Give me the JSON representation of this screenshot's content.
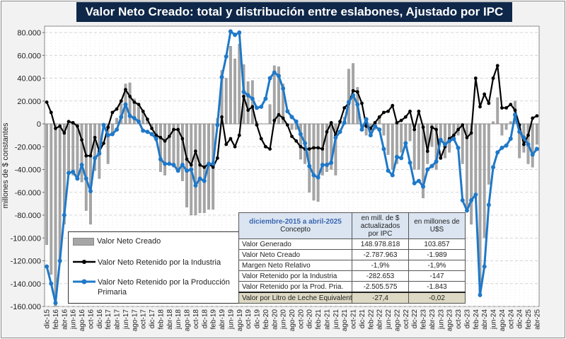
{
  "title": "Valor Neto Creado: total y distribución  entre eslabones, Ajustado  por IPC",
  "colors": {
    "title_bg": "#0f2748",
    "bars": "#a6a6a6",
    "industria": "#000000",
    "produccion": "#1f78c8"
  },
  "chart_data": {
    "type": "bar+line",
    "title": "Valor Neto Creado: total y distribución  entre eslabones, Ajustado  por IPC",
    "ylabel": "millones de $ constantes",
    "ylim": [
      -160000,
      80000
    ],
    "y_ticks": [
      "80.000",
      "60.000",
      "40.000",
      "20.000",
      "0",
      "-20.000",
      "-40.000",
      "-60.000",
      "-80.000",
      "-100.000",
      "-120.000",
      "-140.000",
      "-160.000"
    ],
    "y_tick_values": [
      80000,
      60000,
      40000,
      20000,
      0,
      -20000,
      -40000,
      -60000,
      -80000,
      -100000,
      -120000,
      -140000,
      -160000
    ],
    "grid": true,
    "x_start": "dic-15",
    "x_end": "abr-25",
    "x_tick_labels": [
      "dic-15",
      "feb-16",
      "abr-16",
      "jun-16",
      "ago-16",
      "oct-16",
      "dic-16",
      "feb-17",
      "abr-17",
      "jun-17",
      "ago-17",
      "oct-17",
      "dic-17",
      "feb-18",
      "abr-18",
      "jun-18",
      "ago-18",
      "oct-18",
      "dic-18",
      "feb-19",
      "abr-19",
      "jun-19",
      "ago-19",
      "oct-19",
      "dic-19",
      "feb-20",
      "abr-20",
      "jun-20",
      "ago-20",
      "oct-20",
      "dic-20",
      "feb-21",
      "abr-21",
      "jun-21",
      "ago-21",
      "oct-21",
      "dic-21",
      "feb-22",
      "abr-22",
      "jun-22",
      "ago-22",
      "oct-22",
      "dic-22",
      "feb-23",
      "abr-23",
      "jun-23",
      "ago-23",
      "oct-23",
      "dic-23",
      "feb-24",
      "abr-24",
      "jun-24",
      "ago-24",
      "oct-24",
      "dic-24",
      "feb-25",
      "abr-25"
    ],
    "legend_position": "bottom-left",
    "series": [
      {
        "name": "Valor Neto Creado",
        "type": "bar",
        "values": [
          -106000,
          -132000,
          -160000,
          -122000,
          -88000,
          -42000,
          -45000,
          -48000,
          -51000,
          -76000,
          -88000,
          -41000,
          -48000,
          -2000,
          -35000,
          -10000,
          5000,
          18000,
          35000,
          36000,
          22000,
          15000,
          10000,
          5000,
          -3000,
          -15000,
          -42000,
          -45000,
          -35000,
          -38000,
          -42000,
          -50000,
          -73000,
          -80000,
          -80000,
          -78000,
          -78000,
          -75000,
          -75000,
          5000,
          47000,
          40000,
          68000,
          57000,
          70000,
          52000,
          37000,
          38000,
          2000,
          0,
          0,
          17000,
          51000,
          50000,
          35000,
          0,
          -5000,
          -5000,
          -31000,
          -35000,
          -60000,
          -67000,
          -68000,
          -45000,
          -42000,
          -40000,
          -45000,
          2000,
          6000,
          48000,
          53000,
          32000,
          -5000,
          -10000,
          -8000,
          -5000,
          5000,
          -10000,
          -27000,
          -40000,
          -35000,
          -25000,
          -20000,
          -15000,
          -40000,
          -40000,
          -65000,
          -35000,
          -20000,
          -40000,
          -15000,
          -30000,
          -25000,
          -15000,
          -10000,
          -35000,
          -76000,
          -88000,
          -60000,
          -150000,
          -100000,
          -53000,
          2000,
          23000,
          -10000,
          -5000,
          2000,
          20000,
          -30000,
          -25000,
          -35000,
          -38000,
          -18000
        ]
      },
      {
        "name": "Valor Neto Retenido por la Industria",
        "type": "line",
        "values": [
          19000,
          10000,
          -4000,
          -2000,
          -8000,
          2000,
          1000,
          -2000,
          -14000,
          -28000,
          -28000,
          -12000,
          -24000,
          -17000,
          -3000,
          10000,
          13000,
          20000,
          30000,
          24000,
          19000,
          17000,
          11000,
          4000,
          -4000,
          -10000,
          -12000,
          -15000,
          -11000,
          -5000,
          -5000,
          -13000,
          -31000,
          -36000,
          -24000,
          -36000,
          -38000,
          -35000,
          -38000,
          -30000,
          6000,
          -18000,
          -13000,
          -20000,
          -10000,
          24000,
          12000,
          15000,
          -1000,
          -13000,
          -20000,
          -22000,
          3000,
          8000,
          5000,
          -1000,
          -11000,
          -15000,
          -20000,
          -22000,
          -22000,
          -21000,
          -21000,
          -22000,
          -7000,
          1000,
          -10000,
          2000,
          14000,
          18000,
          29000,
          28000,
          18000,
          -2000,
          -4000,
          1000,
          6000,
          10000,
          11000,
          16000,
          1000,
          3000,
          6000,
          11000,
          -5000,
          11000,
          -3000,
          -24000,
          -3000,
          -5000,
          -30000,
          -20000,
          -13000,
          -10000,
          -5000,
          -1000,
          -12000,
          -8000,
          40000,
          15000,
          26000,
          18000,
          40000,
          51000,
          14000,
          14000,
          17000,
          12000,
          -1000,
          -18000,
          -10000,
          5000,
          7000
        ]
      },
      {
        "name": "Valor Neto Retenido por la Producción Primaria",
        "type": "line",
        "values": [
          -125000,
          -140000,
          -157000,
          -120000,
          -80000,
          -43000,
          -42000,
          -48000,
          -36000,
          -48000,
          -59000,
          -30000,
          -26000,
          -1000,
          -10000,
          -9000,
          -5000,
          6000,
          17000,
          7000,
          5000,
          2000,
          -6000,
          -7000,
          -9000,
          -13000,
          -31000,
          -35000,
          -35000,
          -36000,
          -41000,
          -36000,
          -41000,
          -40000,
          -54000,
          -48000,
          -50000,
          -35000,
          -35000,
          -1000,
          41000,
          59000,
          81000,
          78000,
          80000,
          28000,
          25000,
          22000,
          14000,
          15000,
          22000,
          40000,
          45000,
          42000,
          31000,
          11000,
          6000,
          2000,
          -9000,
          -17000,
          -37000,
          -45000,
          -47000,
          -36000,
          -36000,
          -34000,
          -12000,
          -7000,
          1000,
          19000,
          25000,
          17000,
          -5000,
          4000,
          -10000,
          -2000,
          -5000,
          -22000,
          -41000,
          -45000,
          -29000,
          -30000,
          -17000,
          -34000,
          -52000,
          -50000,
          -55000,
          -40000,
          -37000,
          -33000,
          -14000,
          -18000,
          -15000,
          -13000,
          -21000,
          -67000,
          -76000,
          -67000,
          -62000,
          -150000,
          -125000,
          -71000,
          -38000,
          -25000,
          -21000,
          -19000,
          -13000,
          8000,
          -7000,
          -12000,
          -18000,
          -27000,
          -22000
        ]
      }
    ]
  },
  "legend": {
    "items": [
      "Valor Neto Creado",
      "Valor Neto Retenido por la Industria",
      "Valor Neto Retenido por la Producción",
      "Primaria"
    ]
  },
  "table": {
    "header": {
      "period": "diciembre-2015 a abril-2025",
      "concept": "Concepto",
      "col1": "en mill. de $ actualizados por IPC",
      "col2": "en millones de U$S"
    },
    "rows": [
      {
        "label": "Valor Generado",
        "v1": "148.978.818",
        "v2": "103.857"
      },
      {
        "label": "Valor Neto Creado",
        "v1": "-2.787.963",
        "v2": "-1.989"
      },
      {
        "label": "Margen Neto Relativo",
        "v1": "-1,9%",
        "v2": "-1,9%"
      },
      {
        "label": "Valor Retenido por la Industria",
        "v1": "-282.653",
        "v2": "-147"
      },
      {
        "label": "Valor Retenido por la Prod. Pria.",
        "v1": "-2.505.575",
        "v2": "-1.843"
      },
      {
        "label": "Valor por Litro de Leche Equivalente",
        "v1": "-27,4",
        "v2": "-0,02"
      }
    ]
  }
}
